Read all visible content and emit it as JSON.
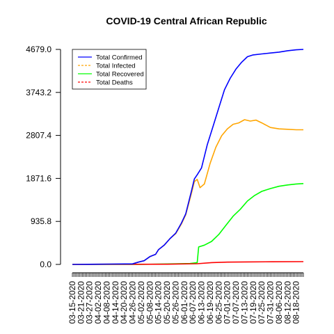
{
  "chart_data": {
    "type": "line",
    "title": "COVID-19 Central African Republic",
    "xlabel": "",
    "ylabel": "",
    "x_start": "2020-03-15",
    "x_end": "2020-08-23",
    "x_tick_labels": [
      "03-15-2020",
      "03-21-2020",
      "03-27-2020",
      "04-02-2020",
      "04-08-2020",
      "04-14-2020",
      "04-20-2020",
      "04-26-2020",
      "05-02-2020",
      "05-08-2020",
      "05-14-2020",
      "05-20-2020",
      "05-26-2020",
      "06-01-2020",
      "06-07-2020",
      "06-13-2020",
      "06-19-2020",
      "06-25-2020",
      "07-01-2020",
      "07-07-2020",
      "07-13-2020",
      "07-19-2020",
      "07-25-2020",
      "07-31-2020",
      "08-06-2020",
      "08-12-2020",
      "08-18-2020"
    ],
    "y_ticks": [
      "0.0",
      "935.8",
      "1871.6",
      "2807.4",
      "3743.2",
      "4679.0"
    ],
    "ylim": [
      0,
      4679.0
    ],
    "grid": false,
    "legend_position": "top-left",
    "series": [
      {
        "name": "Total Confirmed",
        "color": "#0000ff",
        "dash": "solid",
        "points": [
          [
            "2020-03-15",
            0
          ],
          [
            "2020-04-10",
            8
          ],
          [
            "2020-04-26",
            12
          ],
          [
            "2020-04-30",
            50
          ],
          [
            "2020-05-04",
            80
          ],
          [
            "2020-05-08",
            170
          ],
          [
            "2020-05-12",
            220
          ],
          [
            "2020-05-14",
            320
          ],
          [
            "2020-05-18",
            420
          ],
          [
            "2020-05-22",
            560
          ],
          [
            "2020-05-26",
            680
          ],
          [
            "2020-05-30",
            900
          ],
          [
            "2020-06-02",
            1100
          ],
          [
            "2020-06-06",
            1600
          ],
          [
            "2020-06-08",
            1860
          ],
          [
            "2020-06-10",
            1950
          ],
          [
            "2020-06-13",
            2100
          ],
          [
            "2020-06-17",
            2600
          ],
          [
            "2020-06-21",
            3000
          ],
          [
            "2020-06-25",
            3400
          ],
          [
            "2020-06-29",
            3800
          ],
          [
            "2020-07-03",
            4050
          ],
          [
            "2020-07-07",
            4250
          ],
          [
            "2020-07-11",
            4400
          ],
          [
            "2020-07-15",
            4520
          ],
          [
            "2020-07-19",
            4560
          ],
          [
            "2020-07-25",
            4580
          ],
          [
            "2020-07-31",
            4600
          ],
          [
            "2020-08-06",
            4620
          ],
          [
            "2020-08-12",
            4650
          ],
          [
            "2020-08-18",
            4670
          ],
          [
            "2020-08-23",
            4679
          ]
        ]
      },
      {
        "name": "Total Infected",
        "color": "#ffa500",
        "dash": "dashed",
        "points": [
          [
            "2020-03-15",
            0
          ],
          [
            "2020-04-10",
            8
          ],
          [
            "2020-04-26",
            12
          ],
          [
            "2020-04-30",
            50
          ],
          [
            "2020-05-04",
            80
          ],
          [
            "2020-05-08",
            170
          ],
          [
            "2020-05-12",
            220
          ],
          [
            "2020-05-14",
            320
          ],
          [
            "2020-05-18",
            420
          ],
          [
            "2020-05-22",
            560
          ],
          [
            "2020-05-26",
            670
          ],
          [
            "2020-05-30",
            880
          ],
          [
            "2020-06-02",
            1080
          ],
          [
            "2020-06-06",
            1550
          ],
          [
            "2020-06-08",
            1800
          ],
          [
            "2020-06-10",
            1850
          ],
          [
            "2020-06-12",
            1670
          ],
          [
            "2020-06-15",
            1750
          ],
          [
            "2020-06-19",
            2200
          ],
          [
            "2020-06-23",
            2550
          ],
          [
            "2020-06-27",
            2800
          ],
          [
            "2020-07-01",
            2950
          ],
          [
            "2020-07-05",
            3050
          ],
          [
            "2020-07-09",
            3080
          ],
          [
            "2020-07-13",
            3150
          ],
          [
            "2020-07-17",
            3120
          ],
          [
            "2020-07-21",
            3140
          ],
          [
            "2020-07-25",
            3080
          ],
          [
            "2020-07-31",
            2980
          ],
          [
            "2020-08-06",
            2950
          ],
          [
            "2020-08-12",
            2940
          ],
          [
            "2020-08-18",
            2930
          ],
          [
            "2020-08-23",
            2930
          ]
        ]
      },
      {
        "name": "Total Recovered",
        "color": "#00ff00",
        "dash": "solid",
        "points": [
          [
            "2020-03-15",
            0
          ],
          [
            "2020-05-01",
            0
          ],
          [
            "2020-05-20",
            10
          ],
          [
            "2020-06-05",
            20
          ],
          [
            "2020-06-10",
            40
          ],
          [
            "2020-06-11",
            380
          ],
          [
            "2020-06-15",
            420
          ],
          [
            "2020-06-20",
            500
          ],
          [
            "2020-06-25",
            650
          ],
          [
            "2020-06-30",
            850
          ],
          [
            "2020-07-05",
            1050
          ],
          [
            "2020-07-10",
            1200
          ],
          [
            "2020-07-15",
            1380
          ],
          [
            "2020-07-20",
            1500
          ],
          [
            "2020-07-25",
            1590
          ],
          [
            "2020-07-31",
            1650
          ],
          [
            "2020-08-06",
            1700
          ],
          [
            "2020-08-12",
            1730
          ],
          [
            "2020-08-18",
            1750
          ],
          [
            "2020-08-23",
            1760
          ]
        ]
      },
      {
        "name": "Total Deaths",
        "color": "#ff0000",
        "dash": "dashed",
        "points": [
          [
            "2020-03-15",
            0
          ],
          [
            "2020-05-20",
            5
          ],
          [
            "2020-06-10",
            15
          ],
          [
            "2020-06-20",
            40
          ],
          [
            "2020-07-01",
            50
          ],
          [
            "2020-07-15",
            55
          ],
          [
            "2020-08-01",
            58
          ],
          [
            "2020-08-23",
            60
          ]
        ]
      }
    ]
  }
}
